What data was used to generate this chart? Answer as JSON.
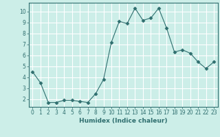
{
  "x": [
    0,
    1,
    2,
    3,
    4,
    5,
    6,
    7,
    8,
    9,
    10,
    11,
    12,
    13,
    14,
    15,
    16,
    17,
    18,
    19,
    20,
    21,
    22,
    23
  ],
  "y": [
    4.5,
    3.5,
    1.7,
    1.7,
    1.9,
    1.9,
    1.8,
    1.7,
    2.5,
    3.8,
    7.2,
    9.1,
    8.9,
    10.3,
    9.2,
    9.4,
    10.3,
    8.5,
    6.3,
    6.5,
    6.2,
    5.4,
    4.8,
    5.4
  ],
  "line_color": "#2e6e6e",
  "marker": "D",
  "marker_size": 2.5,
  "bg_color": "#cceee8",
  "grid_color": "#ffffff",
  "xlabel": "Humidex (Indice chaleur)",
  "xlim": [
    -0.5,
    23.5
  ],
  "ylim": [
    1.3,
    10.8
  ],
  "yticks": [
    2,
    3,
    4,
    5,
    6,
    7,
    8,
    9,
    10
  ],
  "xticks": [
    0,
    1,
    2,
    3,
    4,
    5,
    6,
    7,
    8,
    9,
    10,
    11,
    12,
    13,
    14,
    15,
    16,
    17,
    18,
    19,
    20,
    21,
    22,
    23
  ],
  "tick_fontsize": 5.5,
  "label_fontsize": 6.5
}
